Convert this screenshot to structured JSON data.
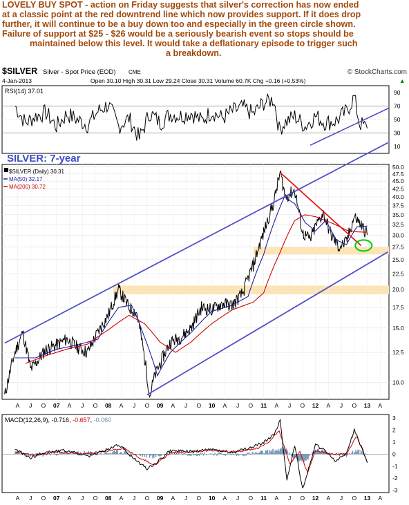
{
  "headline": {
    "lines": [
      "LOVELY BUY SPOT - action on Friday suggests that silver's correction has now ended",
      "at a classic point at the red downtrend line which now provides support. If it does drop",
      "further, it will continue to be a buy down too and especially in the green circle shown.",
      "Failure of support at $25 - $26 would be a seriously bearish event so stops should be",
      "maintained below this level. It would take a deflationary episode to trigger such",
      "a breakdown."
    ]
  },
  "header": {
    "symbol": "$SILVER",
    "name": "Silver - Spot Price (EOD)",
    "exchange": "CME",
    "credit": "© StockCharts.com",
    "date": "4-Jan-2013",
    "quote": "Open 30.10  High 30.31  Low 29.24  Close 30.31  Volume 60.7K  Chg +0.16 (+0.53%)",
    "quote_arrow": "▲"
  },
  "chart_data": [
    {
      "panel": "RSI",
      "type": "line",
      "title": "RSI(14) 37.01",
      "y_ticks": [
        "90",
        "70",
        "50",
        "30",
        "10"
      ],
      "ylim": [
        0,
        100
      ],
      "reference_lines": [
        70,
        30
      ],
      "last_value": 37.01,
      "series": [
        {
          "name": "RSI(14)",
          "color": "#000000",
          "x": [
            2006.2,
            2006.4,
            2006.6,
            2006.8,
            2007.0,
            2007.2,
            2007.4,
            2007.6,
            2007.8,
            2008.0,
            2008.2,
            2008.4,
            2008.6,
            2008.8,
            2009.0,
            2009.2,
            2009.4,
            2009.6,
            2009.8,
            2010.0,
            2010.2,
            2010.4,
            2010.6,
            2010.8,
            2011.0,
            2011.2,
            2011.3,
            2011.4,
            2011.6,
            2011.8,
            2012.0,
            2012.2,
            2012.4,
            2012.6,
            2012.75,
            2012.85,
            2013.0
          ],
          "values": [
            70,
            45,
            55,
            60,
            40,
            58,
            50,
            42,
            62,
            72,
            40,
            52,
            22,
            60,
            45,
            58,
            55,
            60,
            48,
            62,
            52,
            62,
            68,
            58,
            75,
            80,
            35,
            45,
            55,
            40,
            55,
            45,
            48,
            62,
            83,
            45,
            37
          ]
        }
      ]
    },
    {
      "panel": "price",
      "type": "line",
      "annotation": "SILVER: 7-year",
      "scale": "log",
      "y_ticks": [
        "50.0",
        "47.5",
        "45.0",
        "42.5",
        "40.0",
        "37.5",
        "35.0",
        "32.5",
        "30.0",
        "27.5",
        "25.0",
        "22.5",
        "20.0",
        "17.5",
        "15.0",
        "12.5",
        "10.0"
      ],
      "ylim": [
        8.8,
        51
      ],
      "x_ticks": [
        "A",
        "J",
        "O",
        "07",
        "A",
        "J",
        "O",
        "08",
        "A",
        "J",
        "O",
        "09",
        "A",
        "J",
        "O",
        "10",
        "A",
        "J",
        "O",
        "11",
        "A",
        "J",
        "O",
        "12",
        "A",
        "J",
        "O",
        "13",
        "A"
      ],
      "legend": [
        "$SILVER (Daily) 30.31",
        "MA(50) 32.17",
        "MA(200) 30.72"
      ],
      "series": [
        {
          "name": "$SILVER (Daily)",
          "color": "#000000",
          "x": [
            2006.0,
            2006.2,
            2006.35,
            2006.5,
            2006.6,
            2006.8,
            2007.0,
            2007.2,
            2007.4,
            2007.6,
            2007.8,
            2008.0,
            2008.2,
            2008.4,
            2008.55,
            2008.7,
            2008.8,
            2008.9,
            2009.0,
            2009.2,
            2009.4,
            2009.6,
            2009.8,
            2010.0,
            2010.2,
            2010.4,
            2010.6,
            2010.8,
            2011.0,
            2011.2,
            2011.32,
            2011.42,
            2011.6,
            2011.75,
            2011.9,
            2012.0,
            2012.15,
            2012.3,
            2012.45,
            2012.6,
            2012.75,
            2012.85,
            2013.0
          ],
          "values": [
            9.0,
            12.5,
            14.5,
            11.0,
            11.5,
            12.8,
            13.2,
            13.8,
            13.0,
            12.5,
            14.5,
            16.5,
            20.0,
            17.5,
            16.8,
            12.0,
            9.0,
            10.5,
            11.5,
            13.5,
            14.0,
            15.0,
            17.5,
            17.2,
            18.0,
            17.8,
            19.5,
            24.0,
            30.5,
            38.5,
            48.0,
            40.0,
            42.0,
            30.5,
            29.0,
            32.0,
            35.5,
            30.0,
            27.5,
            28.5,
            34.5,
            33.0,
            30.3
          ]
        },
        {
          "name": "MA(50)",
          "color": "#1f1f9f",
          "x": [
            2006.2,
            2006.6,
            2007.0,
            2007.4,
            2007.8,
            2008.2,
            2008.45,
            2008.7,
            2008.95,
            2009.2,
            2009.6,
            2010.0,
            2010.4,
            2010.7,
            2011.0,
            2011.2,
            2011.4,
            2011.6,
            2011.8,
            2012.0,
            2012.2,
            2012.4,
            2012.6,
            2012.8,
            2013.0
          ],
          "values": [
            12.0,
            12.0,
            12.8,
            13.2,
            13.8,
            17.5,
            17.8,
            14.0,
            10.5,
            12.5,
            14.5,
            17.0,
            17.8,
            19.0,
            26.0,
            33.0,
            40.0,
            38.0,
            33.0,
            31.0,
            33.5,
            29.0,
            28.0,
            32.0,
            32.17
          ]
        },
        {
          "name": "MA(200)",
          "color": "#cc0000",
          "x": [
            2006.4,
            2006.8,
            2007.2,
            2007.6,
            2008.0,
            2008.4,
            2008.7,
            2009.0,
            2009.3,
            2009.6,
            2010.0,
            2010.4,
            2010.8,
            2011.0,
            2011.3,
            2011.6,
            2011.8,
            2012.0,
            2012.3,
            2012.6,
            2012.8,
            2013.0
          ],
          "values": [
            11.5,
            12.2,
            12.8,
            13.3,
            14.8,
            16.5,
            15.5,
            13.5,
            12.5,
            13.5,
            15.5,
            17.2,
            18.2,
            19.5,
            26.0,
            33.5,
            35.0,
            34.5,
            33.0,
            31.2,
            30.8,
            30.72
          ]
        }
      ],
      "trendlines": [
        {
          "name": "upper channel",
          "color": "#5050c8",
          "x": [
            2006.0,
            2013.4
          ],
          "values": [
            13.4,
            60.0
          ]
        },
        {
          "name": "lower channel",
          "color": "#5050c8",
          "x": [
            2008.75,
            2013.4
          ],
          "values": [
            9.1,
            26.5
          ]
        },
        {
          "name": "downtrend line",
          "color": "#dd1a1a",
          "x": [
            2011.32,
            2012.88
          ],
          "values": [
            48.0,
            27.8
          ]
        }
      ],
      "support_zones": [
        {
          "from": 26.0,
          "to": 27.5,
          "color": "#fde4b4"
        },
        {
          "from": 19.3,
          "to": 20.6,
          "color": "#fde4b4"
        }
      ],
      "highlight_circle": {
        "x": 2012.93,
        "y": 27.8,
        "color": "#00cc00"
      }
    },
    {
      "panel": "MACD",
      "type": "line",
      "title_parts": [
        "MACD(12,26,9)",
        "-0.716",
        "-0.657",
        "-0.060"
      ],
      "y_ticks": [
        "3",
        "2",
        "1",
        "0",
        "-1",
        "-2",
        "-3"
      ],
      "ylim": [
        -3.2,
        3.3
      ],
      "x_ticks": [
        "A",
        "J",
        "O",
        "07",
        "A",
        "J",
        "O",
        "08",
        "A",
        "J",
        "O",
        "09",
        "A",
        "J",
        "O",
        "10",
        "A",
        "J",
        "O",
        "11",
        "A",
        "J",
        "O",
        "12",
        "A",
        "J",
        "O",
        "13",
        "A"
      ],
      "series": [
        {
          "name": "MACD(12,26,9)",
          "color": "#000000",
          "x": [
            2006.2,
            2006.5,
            2006.8,
            2007.2,
            2007.6,
            2008.0,
            2008.2,
            2008.5,
            2008.75,
            2008.9,
            2009.2,
            2009.6,
            2010.0,
            2010.4,
            2010.8,
            2011.0,
            2011.2,
            2011.32,
            2011.45,
            2011.6,
            2011.75,
            2011.85,
            2012.0,
            2012.2,
            2012.4,
            2012.6,
            2012.75,
            2012.9,
            2013.0
          ],
          "values": [
            0.4,
            -0.3,
            0.2,
            0.3,
            -0.2,
            0.4,
            0.8,
            -0.4,
            -1.2,
            -0.8,
            0.3,
            0.2,
            0.4,
            0.1,
            0.6,
            1.0,
            1.6,
            2.8,
            -2.2,
            0.8,
            -2.9,
            -1.5,
            0.8,
            0.2,
            -0.6,
            0.1,
            2.0,
            0.5,
            -0.716
          ]
        },
        {
          "name": "signal",
          "color": "#cc0000",
          "x": [
            2006.2,
            2006.6,
            2007.0,
            2007.5,
            2008.0,
            2008.3,
            2008.6,
            2008.9,
            2009.2,
            2009.6,
            2010.0,
            2010.5,
            2010.9,
            2011.1,
            2011.3,
            2011.5,
            2011.7,
            2011.85,
            2012.0,
            2012.3,
            2012.6,
            2012.8,
            2013.0
          ],
          "values": [
            0.2,
            -0.1,
            0.2,
            0.0,
            0.3,
            0.5,
            -0.3,
            -0.9,
            0.1,
            0.2,
            0.3,
            0.2,
            0.5,
            1.0,
            2.0,
            -0.8,
            0.2,
            -1.6,
            0.3,
            0.0,
            0.0,
            1.5,
            -0.657
          ]
        },
        {
          "name": "histogram",
          "color": "#6b8fb3",
          "x": [
            2006.2,
            2006.6,
            2007.0,
            2007.5,
            2008.0,
            2008.3,
            2008.6,
            2008.9,
            2009.2,
            2009.6,
            2010.0,
            2010.5,
            2010.9,
            2011.2,
            2011.4,
            2011.6,
            2011.8,
            2012.0,
            2012.3,
            2012.6,
            2012.8,
            2013.0
          ],
          "values": [
            0.1,
            -0.1,
            0.05,
            0.1,
            0.1,
            0.2,
            -0.1,
            -0.2,
            0.1,
            0.0,
            0.05,
            -0.05,
            0.1,
            0.3,
            0.5,
            -0.4,
            -0.6,
            0.4,
            0.1,
            -0.1,
            0.3,
            -0.06
          ]
        }
      ]
    }
  ]
}
